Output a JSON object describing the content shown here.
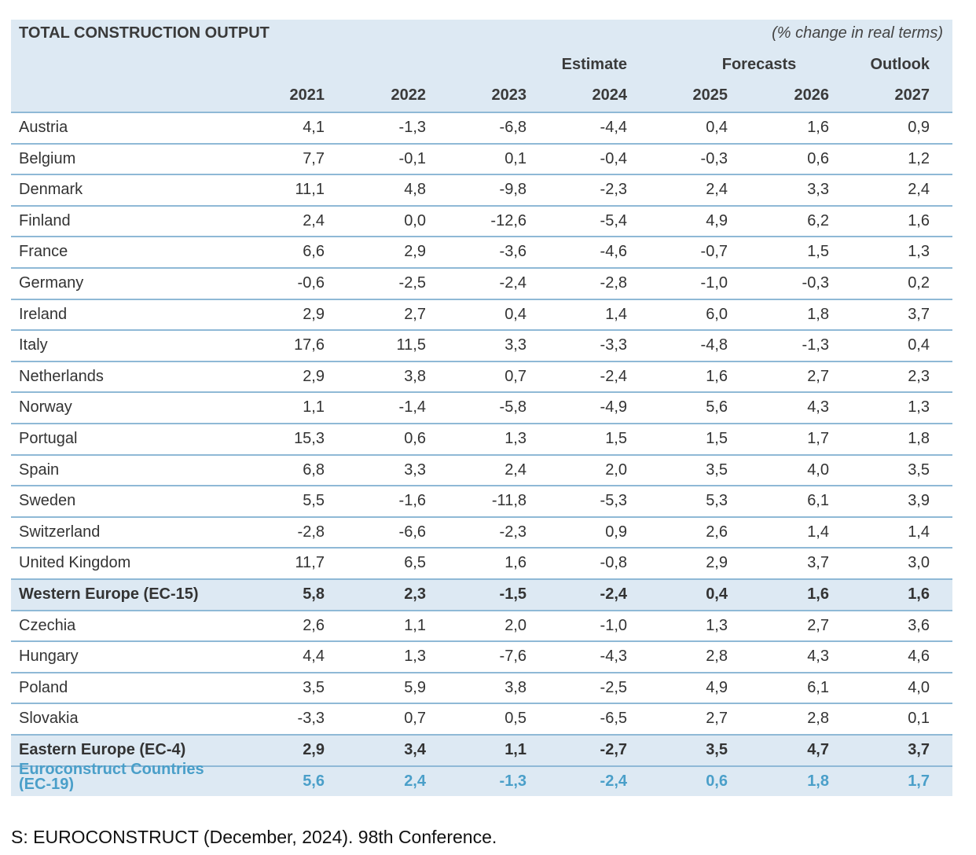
{
  "header": {
    "title": "TOTAL CONSTRUCTION OUTPUT",
    "note": "(% change in real terms)"
  },
  "table": {
    "groups": [
      "Estimate",
      "Forecasts",
      "Outlook"
    ],
    "columns": [
      "2021",
      "2022",
      "2023",
      "2024",
      "2025",
      "2026",
      "2027"
    ],
    "rows": [
      {
        "label": "Austria",
        "values": [
          "4,1",
          "-1,3",
          "-6,8",
          "-4,4",
          "0,4",
          "1,6",
          "0,9"
        ]
      },
      {
        "label": "Belgium",
        "values": [
          "7,7",
          "-0,1",
          "0,1",
          "-0,4",
          "-0,3",
          "0,6",
          "1,2"
        ]
      },
      {
        "label": "Denmark",
        "values": [
          "11,1",
          "4,8",
          "-9,8",
          "-2,3",
          "2,4",
          "3,3",
          "2,4"
        ]
      },
      {
        "label": "Finland",
        "values": [
          "2,4",
          "0,0",
          "-12,6",
          "-5,4",
          "4,9",
          "6,2",
          "1,6"
        ]
      },
      {
        "label": "France",
        "values": [
          "6,6",
          "2,9",
          "-3,6",
          "-4,6",
          "-0,7",
          "1,5",
          "1,3"
        ]
      },
      {
        "label": "Germany",
        "values": [
          "-0,6",
          "-2,5",
          "-2,4",
          "-2,8",
          "-1,0",
          "-0,3",
          "0,2"
        ]
      },
      {
        "label": "Ireland",
        "values": [
          "2,9",
          "2,7",
          "0,4",
          "1,4",
          "6,0",
          "1,8",
          "3,7"
        ]
      },
      {
        "label": "Italy",
        "values": [
          "17,6",
          "11,5",
          "3,3",
          "-3,3",
          "-4,8",
          "-1,3",
          "0,4"
        ]
      },
      {
        "label": "Netherlands",
        "values": [
          "2,9",
          "3,8",
          "0,7",
          "-2,4",
          "1,6",
          "2,7",
          "2,3"
        ]
      },
      {
        "label": "Norway",
        "values": [
          "1,1",
          "-1,4",
          "-5,8",
          "-4,9",
          "5,6",
          "4,3",
          "1,3"
        ]
      },
      {
        "label": "Portugal",
        "values": [
          "15,3",
          "0,6",
          "1,3",
          "1,5",
          "1,5",
          "1,7",
          "1,8"
        ]
      },
      {
        "label": "Spain",
        "values": [
          "6,8",
          "3,3",
          "2,4",
          "2,0",
          "3,5",
          "4,0",
          "3,5"
        ]
      },
      {
        "label": "Sweden",
        "values": [
          "5,5",
          "-1,6",
          "-11,8",
          "-5,3",
          "5,3",
          "6,1",
          "3,9"
        ]
      },
      {
        "label": "Switzerland",
        "values": [
          "-2,8",
          "-6,6",
          "-2,3",
          "0,9",
          "2,6",
          "1,4",
          "1,4"
        ]
      },
      {
        "label": "United Kingdom",
        "values": [
          "11,7",
          "6,5",
          "1,6",
          "-0,8",
          "2,9",
          "3,7",
          "3,0"
        ]
      },
      {
        "label": "Western Europe (EC-15)",
        "values": [
          "5,8",
          "2,3",
          "-1,5",
          "-2,4",
          "0,4",
          "1,6",
          "1,6"
        ]
      },
      {
        "label": "Czechia",
        "values": [
          "2,6",
          "1,1",
          "2,0",
          "-1,0",
          "1,3",
          "2,7",
          "3,6"
        ]
      },
      {
        "label": "Hungary",
        "values": [
          "4,4",
          "1,3",
          "-7,6",
          "-4,3",
          "2,8",
          "4,3",
          "4,6"
        ]
      },
      {
        "label": "Poland",
        "values": [
          "3,5",
          "5,9",
          "3,8",
          "-2,5",
          "4,9",
          "6,1",
          "4,0"
        ]
      },
      {
        "label": "Slovakia",
        "values": [
          "-3,3",
          "0,7",
          "0,5",
          "-6,5",
          "2,7",
          "2,8",
          "0,1"
        ]
      },
      {
        "label": "Eastern Europe (EC-4)",
        "values": [
          "2,9",
          "3,4",
          "1,1",
          "-2,7",
          "3,5",
          "4,7",
          "3,7"
        ]
      },
      {
        "label": "Euroconstruct Countries (EC-19)",
        "values": [
          "5,6",
          "2,4",
          "-1,3",
          "-2,4",
          "0,6",
          "1,8",
          "1,7"
        ]
      }
    ]
  },
  "source": "S: EUROCONSTRUCT (December, 2024). 98th Conference."
}
